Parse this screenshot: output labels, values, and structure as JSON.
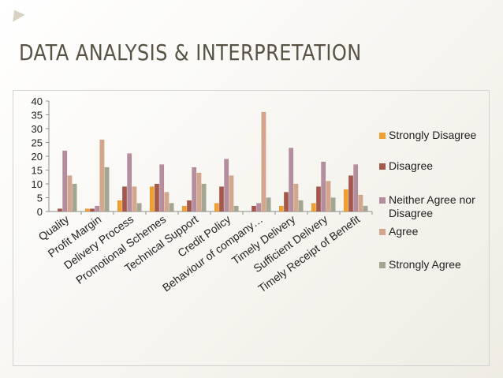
{
  "slide": {
    "title": "DATA ANALYSIS & INTERPRETATION"
  },
  "chart_data": {
    "type": "bar",
    "categories": [
      "Quality",
      "Profit Margin",
      "Delivery Process",
      "Promotional Schemes",
      "Technical Support",
      "Credit Policy",
      "Behaviour of company…",
      "Timely Delivery",
      "Sufficient Delivery",
      "Timely Receipt of Benefit"
    ],
    "series": [
      {
        "name": "Strongly Disagree",
        "color": "#f0a030",
        "values": [
          0,
          1,
          4,
          9,
          2,
          3,
          0,
          2,
          3,
          8
        ]
      },
      {
        "name": "Disagree",
        "color": "#a4574a",
        "values": [
          1,
          1,
          9,
          10,
          4,
          9,
          2,
          7,
          9,
          13
        ]
      },
      {
        "name": "Neither Agree nor Disagree",
        "color": "#b58d9e",
        "values": [
          22,
          2,
          21,
          17,
          16,
          19,
          3,
          23,
          18,
          17
        ]
      },
      {
        "name": "Agree",
        "color": "#d4a78c",
        "values": [
          13,
          26,
          9,
          7,
          14,
          13,
          36,
          10,
          11,
          6
        ]
      },
      {
        "name": "Strongly Agree",
        "color": "#a3a690",
        "values": [
          10,
          16,
          3,
          3,
          10,
          2,
          5,
          4,
          5,
          2
        ]
      }
    ],
    "yticks": [
      0,
      5,
      10,
      15,
      20,
      25,
      30,
      35,
      40
    ],
    "ylim": [
      0,
      40
    ],
    "legend_position": "right",
    "grid": false
  }
}
